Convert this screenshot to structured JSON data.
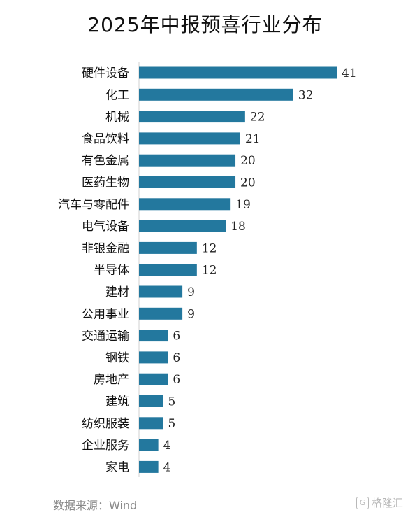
{
  "chart_data": {
    "type": "bar",
    "orientation": "horizontal",
    "title": "2025年中报预喜行业分布",
    "categories": [
      "硬件设备",
      "化工",
      "机械",
      "食品饮料",
      "有色金属",
      "医药生物",
      "汽车与零配件",
      "电气设备",
      "非银金融",
      "半导体",
      "建材",
      "公用事业",
      "交通运输",
      "钢铁",
      "房地产",
      "建筑",
      "纺织服装",
      "企业服务",
      "家电"
    ],
    "values": [
      41,
      32,
      22,
      21,
      20,
      20,
      19,
      18,
      12,
      12,
      9,
      9,
      6,
      6,
      6,
      5,
      5,
      4,
      4
    ],
    "xlim": [
      0,
      41
    ],
    "grid": false,
    "bar_color": "#23789e"
  },
  "source": "数据来源：Wind",
  "watermark": {
    "text": "格隆汇",
    "icon": "watermark-logo-icon"
  }
}
